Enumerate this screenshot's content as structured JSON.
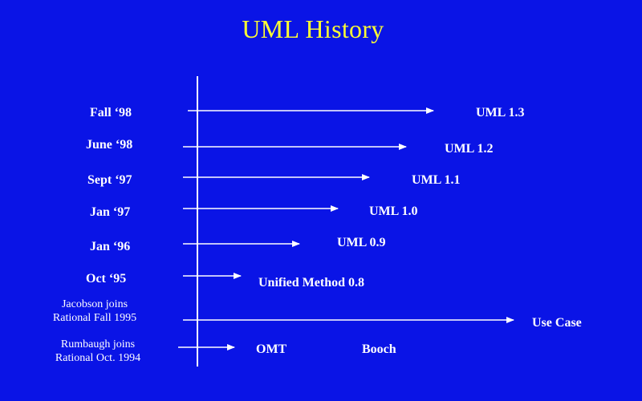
{
  "slide": {
    "title": "UML History"
  },
  "colors": {
    "background": "#0a14e6",
    "title": "#ffff33",
    "text": "#ffffff",
    "lines": "#ffffff"
  },
  "timeline": [
    {
      "date": "Fall ‘98",
      "release": "UML 1.3"
    },
    {
      "date": "June ‘98",
      "release": "UML 1.2"
    },
    {
      "date": "Sept ‘97",
      "release": "UML 1.1"
    },
    {
      "date": "Jan ‘97",
      "release": "UML 1.0"
    },
    {
      "date": "Jan ‘96",
      "release": "UML 0.9"
    },
    {
      "date": "Oct ‘95",
      "release": "Unified Method 0.8"
    },
    {
      "date_line1": "Jacobson joins",
      "date_line2": "Rational Fall 1995",
      "release": "Use Case"
    },
    {
      "date_line1": "Rumbaugh  joins",
      "date_line2": "Rational Oct. 1994",
      "release_a": "OMT",
      "release_b": "Booch"
    }
  ]
}
